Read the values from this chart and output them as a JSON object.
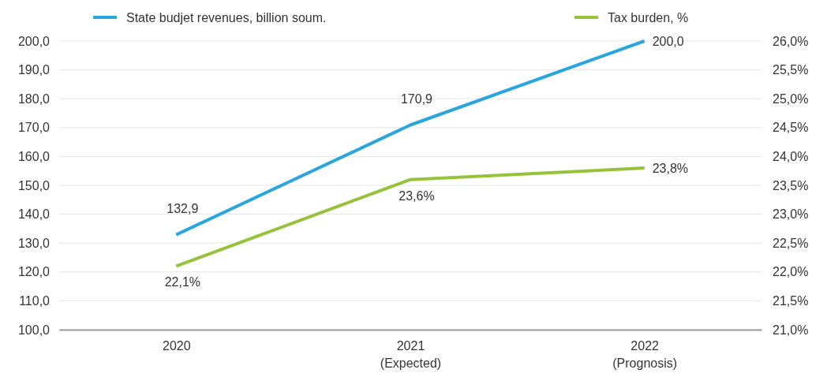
{
  "chart_data": {
    "type": "line",
    "categories": [
      "2020",
      "2021\n(Expected)",
      "2022\n(Prognosis)"
    ],
    "series": [
      {
        "name": "State budjet revenues, billion soum.",
        "color": "#2ba6dd",
        "values": [
          132.9,
          170.9,
          200.0
        ],
        "value_labels": [
          "132,9",
          "170,9",
          "200,0"
        ]
      },
      {
        "name": "Tax burden, %",
        "color": "#96c23c",
        "values": [
          22.1,
          23.6,
          23.8
        ],
        "value_labels": [
          "22,1%",
          "23,6%",
          "23,8%"
        ],
        "axis": "y2"
      }
    ],
    "ylim": [
      100,
      200
    ],
    "yticks": [
      {
        "value": 100,
        "label": "100,0"
      },
      {
        "value": 110,
        "label": "110,0"
      },
      {
        "value": 120,
        "label": "120,0"
      },
      {
        "value": 130,
        "label": "130,0"
      },
      {
        "value": 140,
        "label": "140,0"
      },
      {
        "value": 150,
        "label": "150,0"
      },
      {
        "value": 160,
        "label": "160,0"
      },
      {
        "value": 170,
        "label": "170,0"
      },
      {
        "value": 180,
        "label": "180,0"
      },
      {
        "value": 190,
        "label": "190,0"
      },
      {
        "value": 200,
        "label": "200,0"
      }
    ],
    "y2lim": [
      21,
      26
    ],
    "y2ticks": [
      {
        "value": 21,
        "label": "21,0%"
      },
      {
        "value": 21.5,
        "label": "21,5%"
      },
      {
        "value": 22,
        "label": "22,0%"
      },
      {
        "value": 22.5,
        "label": "22,5%"
      },
      {
        "value": 23,
        "label": "23,0%"
      },
      {
        "value": 23.5,
        "label": "23,5%"
      },
      {
        "value": 24,
        "label": "24,0%"
      },
      {
        "value": 24.5,
        "label": "24,5%"
      },
      {
        "value": 25,
        "label": "25,0%"
      },
      {
        "value": 25.5,
        "label": "25,5%"
      },
      {
        "value": 26,
        "label": "26,0%"
      }
    ],
    "grid": "y",
    "legend": "top",
    "marker": "none",
    "line_style": "solid"
  }
}
